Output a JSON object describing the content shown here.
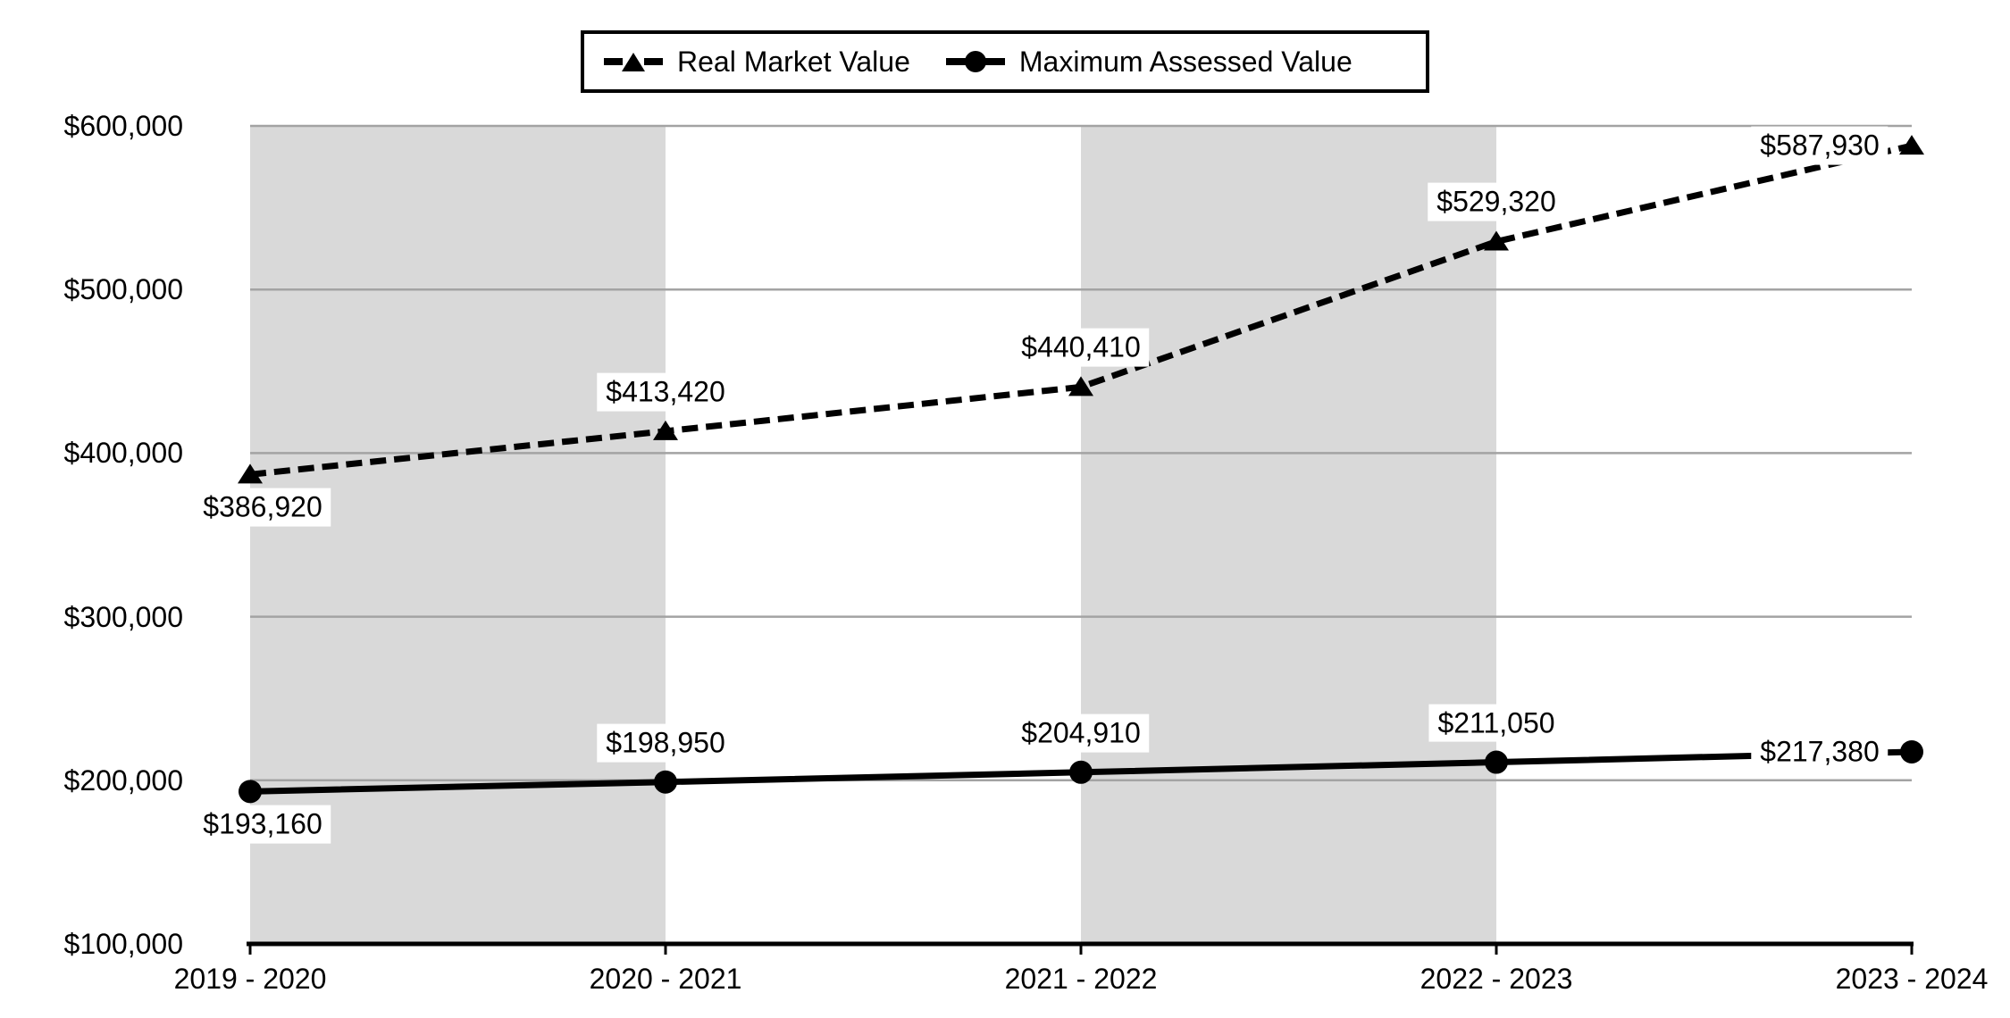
{
  "chart_data": {
    "type": "line",
    "title": "",
    "xlabel": "",
    "ylabel": "",
    "categories": [
      "2019 - 2020",
      "2020 - 2021",
      "2021 - 2022",
      "2022 - 2023",
      "2023 - 2024"
    ],
    "series": [
      {
        "name": "Real Market Value",
        "values": [
          386920,
          413420,
          440410,
          529320,
          587930
        ],
        "data_labels": [
          "$386,920",
          "$413,420",
          "$440,410",
          "$529,320",
          "$587,930"
        ],
        "label_placements": [
          "below",
          "above",
          "above",
          "above",
          "left"
        ],
        "line_style": "dashed",
        "marker": "triangle"
      },
      {
        "name": "Maximum Assessed Value",
        "values": [
          193160,
          198950,
          204910,
          211050,
          217380
        ],
        "data_labels": [
          "$193,160",
          "$198,950",
          "$204,910",
          "$211,050",
          "$217,380"
        ],
        "label_placements": [
          "below",
          "above",
          "above",
          "above",
          "left"
        ],
        "line_style": "solid",
        "marker": "circle"
      }
    ],
    "y_axis": {
      "min": 100000,
      "max": 600000,
      "step": 100000,
      "tick_labels": [
        "$100,000",
        "$200,000",
        "$300,000",
        "$400,000",
        "$500,000",
        "$600,000"
      ]
    },
    "ylim": [
      100000,
      600000
    ],
    "grid": true,
    "legend_position": "top",
    "plot_bands": {
      "intervals": [
        [
          0,
          1
        ],
        [
          2,
          3
        ]
      ]
    },
    "colors": {
      "series_line": "#000000",
      "gridline": "#A3A3A3",
      "axis_line": "#000000",
      "band_fill": "#D9D9D9",
      "label_background": "#FFFFFF",
      "text": "#000000",
      "background": "#FFFFFF"
    }
  }
}
